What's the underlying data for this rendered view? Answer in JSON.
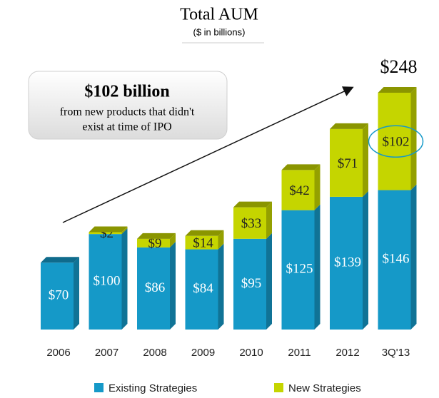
{
  "chart_data": {
    "type": "bar",
    "stacked": true,
    "title": "Total AUM",
    "subtitle": "($ in billions)",
    "categories": [
      "2006",
      "2007",
      "2008",
      "2009",
      "2010",
      "2011",
      "2012",
      "3Q'13"
    ],
    "series": [
      {
        "name": "Existing Strategies",
        "color": "#1599c8",
        "values": [
          70,
          100,
          86,
          84,
          95,
          125,
          139,
          146
        ],
        "value_labels": [
          "$70",
          "$100",
          "$86",
          "$84",
          "$95",
          "$125",
          "$139",
          "$146"
        ]
      },
      {
        "name": "New Strategies",
        "color": "#c5d500",
        "values": [
          null,
          2,
          9,
          14,
          33,
          42,
          71,
          102
        ],
        "value_labels": [
          null,
          "$2",
          "$9",
          "$14",
          "$33",
          "$42",
          "$71",
          "$102"
        ]
      }
    ],
    "total": {
      "value": 248,
      "label": "$248"
    },
    "callout": {
      "headline": "$102 billion",
      "lines": [
        "from new products that didn't",
        "exist at time of IPO"
      ]
    },
    "legend": "bottom"
  }
}
